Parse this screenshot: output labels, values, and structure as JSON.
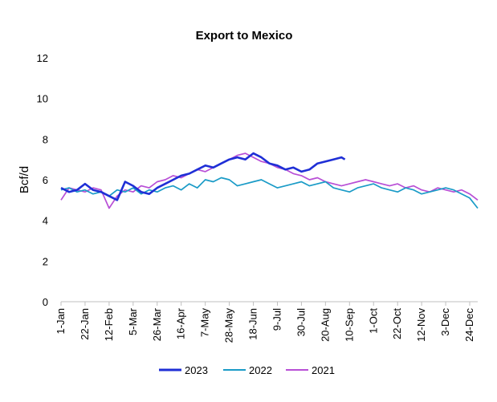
{
  "chart_data": {
    "type": "line",
    "title": "Export to Mexico",
    "ylabel": "Bcf/d",
    "xlabel": "",
    "ylim": [
      0,
      12
    ],
    "yticks": [
      0,
      2,
      4,
      6,
      8,
      10,
      12
    ],
    "xlim": [
      1,
      365
    ],
    "x_unit": "day of year",
    "xticks": [
      {
        "day": 1,
        "label": "1-Jan"
      },
      {
        "day": 22,
        "label": "22-Jan"
      },
      {
        "day": 43,
        "label": "12-Feb"
      },
      {
        "day": 64,
        "label": "5-Mar"
      },
      {
        "day": 85,
        "label": "26-Mar"
      },
      {
        "day": 106,
        "label": "16-Apr"
      },
      {
        "day": 127,
        "label": "7-May"
      },
      {
        "day": 148,
        "label": "28-May"
      },
      {
        "day": 169,
        "label": "18-Jun"
      },
      {
        "day": 190,
        "label": "9-Jul"
      },
      {
        "day": 211,
        "label": "30-Jul"
      },
      {
        "day": 232,
        "label": "20-Aug"
      },
      {
        "day": 253,
        "label": "10-Sep"
      },
      {
        "day": 274,
        "label": "1-Oct"
      },
      {
        "day": 295,
        "label": "22-Oct"
      },
      {
        "day": 316,
        "label": "12-Nov"
      },
      {
        "day": 337,
        "label": "3-Dec"
      },
      {
        "day": 358,
        "label": "24-Dec"
      }
    ],
    "legend": "bottom",
    "grid": false,
    "series": [
      {
        "name": "2023",
        "color": "#1f2fd6",
        "x": [
          1,
          8,
          15,
          22,
          29,
          36,
          43,
          50,
          57,
          64,
          71,
          78,
          85,
          92,
          99,
          106,
          113,
          120,
          127,
          134,
          141,
          148,
          155,
          162,
          169,
          176,
          183,
          190,
          197,
          204,
          211,
          218,
          225,
          232,
          239,
          246,
          249
        ],
        "values": [
          5.6,
          5.4,
          5.5,
          5.8,
          5.5,
          5.4,
          5.2,
          5.0,
          5.9,
          5.7,
          5.4,
          5.3,
          5.6,
          5.8,
          6.0,
          6.2,
          6.3,
          6.5,
          6.7,
          6.6,
          6.8,
          7.0,
          7.1,
          7.0,
          7.3,
          7.1,
          6.8,
          6.7,
          6.5,
          6.6,
          6.4,
          6.5,
          6.8,
          6.9,
          7.0,
          7.1,
          7.0
        ]
      },
      {
        "name": "2022",
        "color": "#1a9bc7",
        "x": [
          1,
          8,
          15,
          22,
          29,
          36,
          43,
          50,
          57,
          64,
          71,
          78,
          85,
          92,
          99,
          106,
          113,
          120,
          127,
          134,
          141,
          148,
          155,
          162,
          169,
          176,
          183,
          190,
          197,
          204,
          211,
          218,
          225,
          232,
          239,
          246,
          253,
          260,
          267,
          274,
          281,
          288,
          295,
          302,
          309,
          316,
          323,
          330,
          337,
          344,
          351,
          358,
          365
        ],
        "values": [
          5.5,
          5.6,
          5.4,
          5.5,
          5.3,
          5.4,
          5.2,
          5.5,
          5.4,
          5.6,
          5.3,
          5.5,
          5.4,
          5.6,
          5.7,
          5.5,
          5.8,
          5.6,
          6.0,
          5.9,
          6.1,
          6.0,
          5.7,
          5.8,
          5.9,
          6.0,
          5.8,
          5.6,
          5.7,
          5.8,
          5.9,
          5.7,
          5.8,
          5.9,
          5.6,
          5.5,
          5.4,
          5.6,
          5.7,
          5.8,
          5.6,
          5.5,
          5.4,
          5.6,
          5.5,
          5.3,
          5.4,
          5.5,
          5.6,
          5.5,
          5.3,
          5.1,
          4.6
        ]
      },
      {
        "name": "2021",
        "color": "#b84fd6",
        "x": [
          1,
          8,
          15,
          22,
          29,
          36,
          43,
          50,
          57,
          64,
          71,
          78,
          85,
          92,
          99,
          106,
          113,
          120,
          127,
          134,
          141,
          148,
          155,
          162,
          169,
          176,
          183,
          190,
          197,
          204,
          211,
          218,
          225,
          232,
          239,
          246,
          253,
          260,
          267,
          274,
          281,
          288,
          295,
          302,
          309,
          316,
          323,
          330,
          337,
          344,
          351,
          358,
          365
        ],
        "values": [
          5.0,
          5.6,
          5.5,
          5.4,
          5.6,
          5.5,
          4.6,
          5.2,
          5.5,
          5.4,
          5.7,
          5.6,
          5.9,
          6.0,
          6.2,
          6.1,
          6.3,
          6.5,
          6.4,
          6.6,
          6.8,
          7.0,
          7.2,
          7.3,
          7.1,
          6.9,
          6.8,
          6.6,
          6.5,
          6.3,
          6.2,
          6.0,
          6.1,
          5.9,
          5.8,
          5.7,
          5.8,
          5.9,
          6.0,
          5.9,
          5.8,
          5.7,
          5.8,
          5.6,
          5.7,
          5.5,
          5.4,
          5.6,
          5.5,
          5.4,
          5.5,
          5.3,
          5.0
        ]
      }
    ]
  }
}
